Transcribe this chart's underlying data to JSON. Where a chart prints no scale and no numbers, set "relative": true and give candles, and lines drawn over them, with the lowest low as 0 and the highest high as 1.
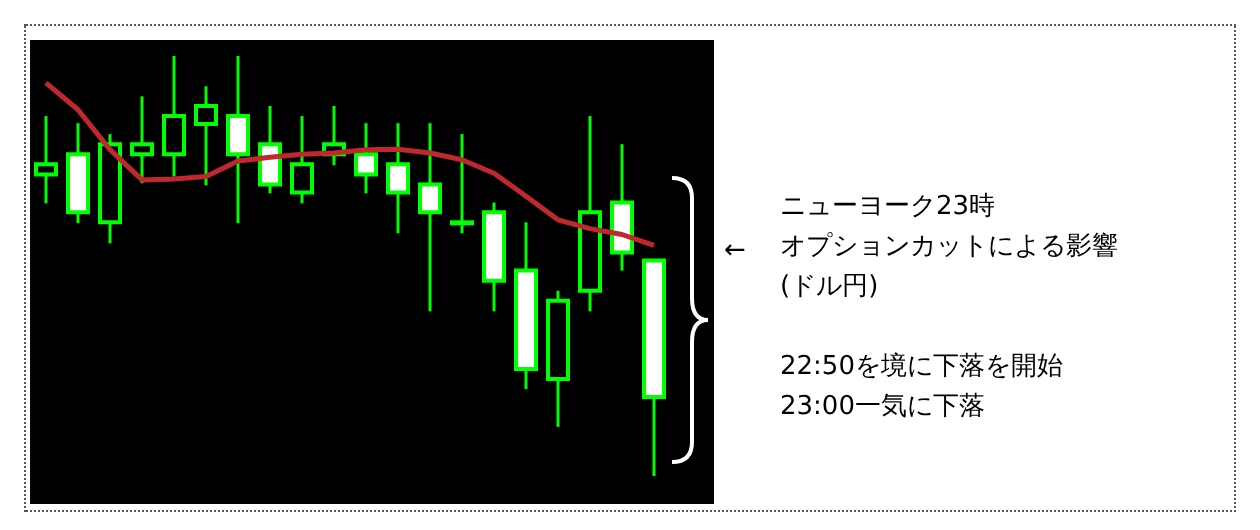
{
  "chart_data": {
    "type": "candlestick",
    "relative": true,
    "tick_labels": false,
    "color": "#00ff00",
    "categories": [
      null,
      null,
      null,
      null,
      null,
      null,
      null,
      null,
      null,
      null,
      null,
      null,
      null,
      null,
      null,
      null,
      null,
      null,
      null,
      null
    ],
    "ohlc": [
      [
        0.718,
        0.857,
        0.649,
        0.742
      ],
      [
        0.766,
        0.84,
        0.602,
        0.628
      ],
      [
        0.604,
        0.814,
        0.554,
        0.79
      ],
      [
        0.766,
        0.904,
        0.697,
        0.79
      ],
      [
        0.766,
        1.0,
        0.713,
        0.857
      ],
      [
        0.838,
        0.928,
        0.692,
        0.881
      ],
      [
        0.857,
        1.0,
        0.602,
        0.766
      ],
      [
        0.79,
        0.881,
        0.673,
        0.694
      ],
      [
        0.675,
        0.857,
        0.649,
        0.742
      ],
      [
        0.766,
        0.881,
        0.74,
        0.79
      ],
      [
        0.766,
        0.84,
        0.673,
        0.718
      ],
      [
        0.742,
        0.84,
        0.578,
        0.675
      ],
      [
        0.694,
        0.84,
        0.392,
        0.628
      ],
      [
        0.604,
        0.814,
        0.578,
        0.604
      ],
      [
        0.628,
        0.651,
        0.392,
        0.465
      ],
      [
        0.489,
        0.604,
        0.207,
        0.255
      ],
      [
        0.231,
        0.441,
        0.117,
        0.417
      ],
      [
        0.441,
        0.857,
        0.392,
        0.628
      ],
      [
        0.651,
        0.79,
        0.489,
        0.532
      ],
      [
        0.513,
        0.513,
        0.0,
        0.188
      ]
    ],
    "series": [
      {
        "type": "line",
        "color": "#c0282d",
        "values": [
          0.936,
          0.872,
          0.777,
          0.705,
          0.707,
          0.713,
          0.75,
          0.759,
          0.766,
          0.769,
          0.777,
          0.778,
          0.769,
          0.753,
          0.721,
          0.666,
          0.61,
          0.589,
          0.575,
          0.549
        ]
      }
    ],
    "annotations": [
      "ニューヨーク23時",
      "←",
      "オプションカットによる影響",
      "(ドル円)",
      "22:50を境に下落を開始",
      "23:00一気に下落"
    ]
  }
}
